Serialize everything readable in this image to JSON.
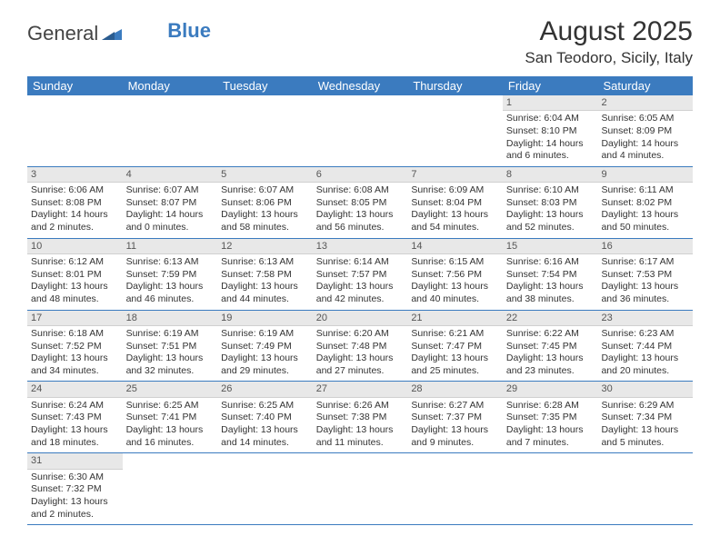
{
  "logo": {
    "text1": "General",
    "text2": "Blue"
  },
  "header": {
    "month_title": "August 2025",
    "location": "San Teodoro, Sicily, Italy"
  },
  "colors": {
    "header_bg": "#3b7bbf",
    "header_text": "#ffffff",
    "daynum_bg": "#e8e8e8",
    "row_border": "#3b7bbf"
  },
  "weekdays": [
    "Sunday",
    "Monday",
    "Tuesday",
    "Wednesday",
    "Thursday",
    "Friday",
    "Saturday"
  ],
  "weeks": [
    [
      null,
      null,
      null,
      null,
      null,
      {
        "n": "1",
        "sr": "Sunrise: 6:04 AM",
        "ss": "Sunset: 8:10 PM",
        "dl1": "Daylight: 14 hours",
        "dl2": "and 6 minutes."
      },
      {
        "n": "2",
        "sr": "Sunrise: 6:05 AM",
        "ss": "Sunset: 8:09 PM",
        "dl1": "Daylight: 14 hours",
        "dl2": "and 4 minutes."
      }
    ],
    [
      {
        "n": "3",
        "sr": "Sunrise: 6:06 AM",
        "ss": "Sunset: 8:08 PM",
        "dl1": "Daylight: 14 hours",
        "dl2": "and 2 minutes."
      },
      {
        "n": "4",
        "sr": "Sunrise: 6:07 AM",
        "ss": "Sunset: 8:07 PM",
        "dl1": "Daylight: 14 hours",
        "dl2": "and 0 minutes."
      },
      {
        "n": "5",
        "sr": "Sunrise: 6:07 AM",
        "ss": "Sunset: 8:06 PM",
        "dl1": "Daylight: 13 hours",
        "dl2": "and 58 minutes."
      },
      {
        "n": "6",
        "sr": "Sunrise: 6:08 AM",
        "ss": "Sunset: 8:05 PM",
        "dl1": "Daylight: 13 hours",
        "dl2": "and 56 minutes."
      },
      {
        "n": "7",
        "sr": "Sunrise: 6:09 AM",
        "ss": "Sunset: 8:04 PM",
        "dl1": "Daylight: 13 hours",
        "dl2": "and 54 minutes."
      },
      {
        "n": "8",
        "sr": "Sunrise: 6:10 AM",
        "ss": "Sunset: 8:03 PM",
        "dl1": "Daylight: 13 hours",
        "dl2": "and 52 minutes."
      },
      {
        "n": "9",
        "sr": "Sunrise: 6:11 AM",
        "ss": "Sunset: 8:02 PM",
        "dl1": "Daylight: 13 hours",
        "dl2": "and 50 minutes."
      }
    ],
    [
      {
        "n": "10",
        "sr": "Sunrise: 6:12 AM",
        "ss": "Sunset: 8:01 PM",
        "dl1": "Daylight: 13 hours",
        "dl2": "and 48 minutes."
      },
      {
        "n": "11",
        "sr": "Sunrise: 6:13 AM",
        "ss": "Sunset: 7:59 PM",
        "dl1": "Daylight: 13 hours",
        "dl2": "and 46 minutes."
      },
      {
        "n": "12",
        "sr": "Sunrise: 6:13 AM",
        "ss": "Sunset: 7:58 PM",
        "dl1": "Daylight: 13 hours",
        "dl2": "and 44 minutes."
      },
      {
        "n": "13",
        "sr": "Sunrise: 6:14 AM",
        "ss": "Sunset: 7:57 PM",
        "dl1": "Daylight: 13 hours",
        "dl2": "and 42 minutes."
      },
      {
        "n": "14",
        "sr": "Sunrise: 6:15 AM",
        "ss": "Sunset: 7:56 PM",
        "dl1": "Daylight: 13 hours",
        "dl2": "and 40 minutes."
      },
      {
        "n": "15",
        "sr": "Sunrise: 6:16 AM",
        "ss": "Sunset: 7:54 PM",
        "dl1": "Daylight: 13 hours",
        "dl2": "and 38 minutes."
      },
      {
        "n": "16",
        "sr": "Sunrise: 6:17 AM",
        "ss": "Sunset: 7:53 PM",
        "dl1": "Daylight: 13 hours",
        "dl2": "and 36 minutes."
      }
    ],
    [
      {
        "n": "17",
        "sr": "Sunrise: 6:18 AM",
        "ss": "Sunset: 7:52 PM",
        "dl1": "Daylight: 13 hours",
        "dl2": "and 34 minutes."
      },
      {
        "n": "18",
        "sr": "Sunrise: 6:19 AM",
        "ss": "Sunset: 7:51 PM",
        "dl1": "Daylight: 13 hours",
        "dl2": "and 32 minutes."
      },
      {
        "n": "19",
        "sr": "Sunrise: 6:19 AM",
        "ss": "Sunset: 7:49 PM",
        "dl1": "Daylight: 13 hours",
        "dl2": "and 29 minutes."
      },
      {
        "n": "20",
        "sr": "Sunrise: 6:20 AM",
        "ss": "Sunset: 7:48 PM",
        "dl1": "Daylight: 13 hours",
        "dl2": "and 27 minutes."
      },
      {
        "n": "21",
        "sr": "Sunrise: 6:21 AM",
        "ss": "Sunset: 7:47 PM",
        "dl1": "Daylight: 13 hours",
        "dl2": "and 25 minutes."
      },
      {
        "n": "22",
        "sr": "Sunrise: 6:22 AM",
        "ss": "Sunset: 7:45 PM",
        "dl1": "Daylight: 13 hours",
        "dl2": "and 23 minutes."
      },
      {
        "n": "23",
        "sr": "Sunrise: 6:23 AM",
        "ss": "Sunset: 7:44 PM",
        "dl1": "Daylight: 13 hours",
        "dl2": "and 20 minutes."
      }
    ],
    [
      {
        "n": "24",
        "sr": "Sunrise: 6:24 AM",
        "ss": "Sunset: 7:43 PM",
        "dl1": "Daylight: 13 hours",
        "dl2": "and 18 minutes."
      },
      {
        "n": "25",
        "sr": "Sunrise: 6:25 AM",
        "ss": "Sunset: 7:41 PM",
        "dl1": "Daylight: 13 hours",
        "dl2": "and 16 minutes."
      },
      {
        "n": "26",
        "sr": "Sunrise: 6:25 AM",
        "ss": "Sunset: 7:40 PM",
        "dl1": "Daylight: 13 hours",
        "dl2": "and 14 minutes."
      },
      {
        "n": "27",
        "sr": "Sunrise: 6:26 AM",
        "ss": "Sunset: 7:38 PM",
        "dl1": "Daylight: 13 hours",
        "dl2": "and 11 minutes."
      },
      {
        "n": "28",
        "sr": "Sunrise: 6:27 AM",
        "ss": "Sunset: 7:37 PM",
        "dl1": "Daylight: 13 hours",
        "dl2": "and 9 minutes."
      },
      {
        "n": "29",
        "sr": "Sunrise: 6:28 AM",
        "ss": "Sunset: 7:35 PM",
        "dl1": "Daylight: 13 hours",
        "dl2": "and 7 minutes."
      },
      {
        "n": "30",
        "sr": "Sunrise: 6:29 AM",
        "ss": "Sunset: 7:34 PM",
        "dl1": "Daylight: 13 hours",
        "dl2": "and 5 minutes."
      }
    ],
    [
      {
        "n": "31",
        "sr": "Sunrise: 6:30 AM",
        "ss": "Sunset: 7:32 PM",
        "dl1": "Daylight: 13 hours",
        "dl2": "and 2 minutes."
      },
      null,
      null,
      null,
      null,
      null,
      null
    ]
  ]
}
